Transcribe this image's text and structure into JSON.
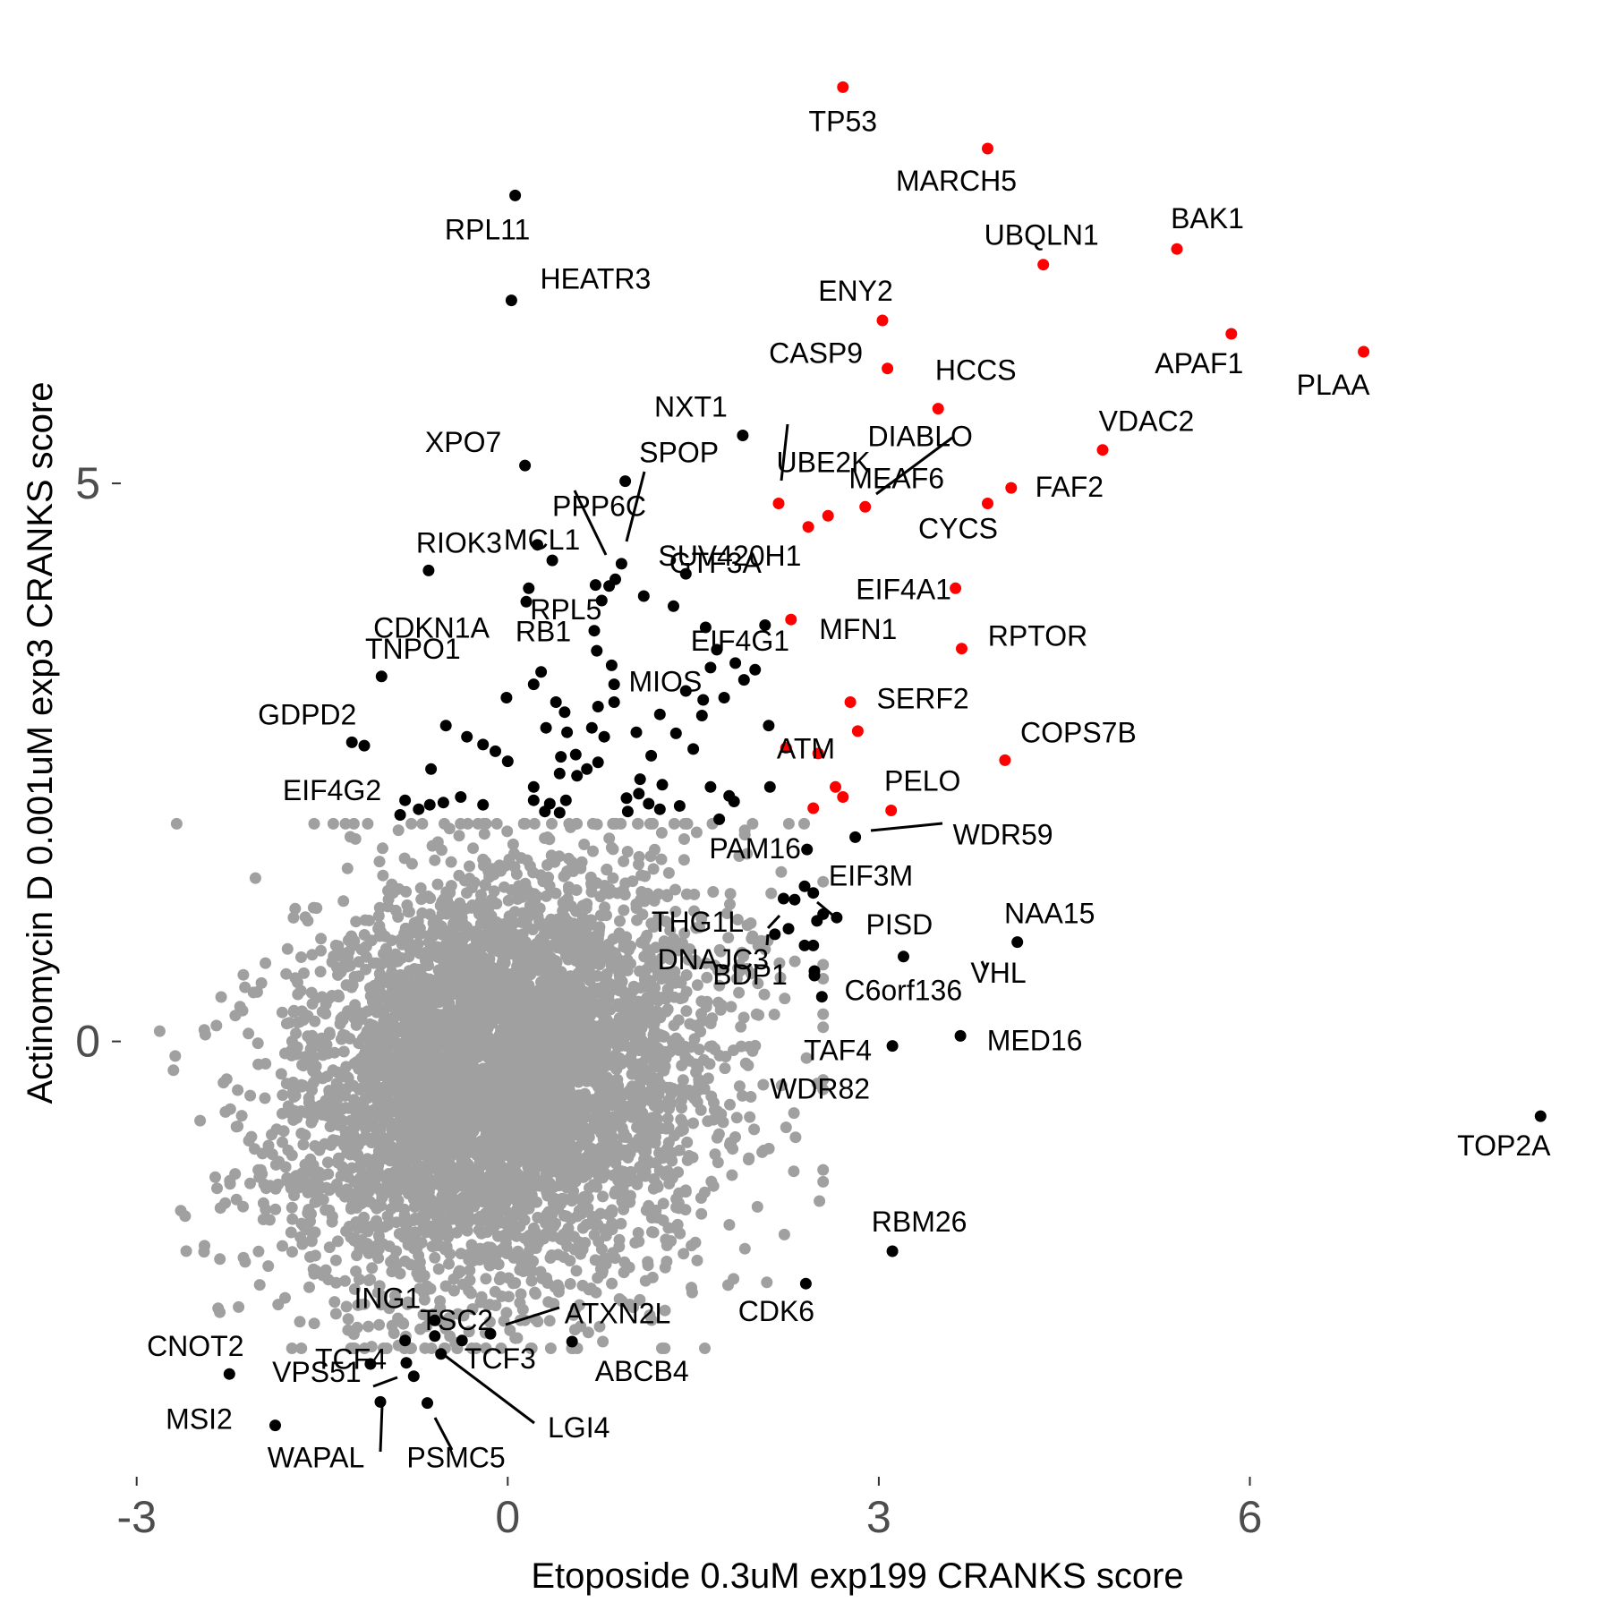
{
  "chart_data": {
    "type": "scatter",
    "title": "",
    "xlabel": "Etoposide 0.3uM exp199 CRANKS score",
    "ylabel": "Actinomycin D 0.001uM exp3 CRANKS score",
    "xlim": [
      -3.05,
      8.7
    ],
    "ylim": [
      -4.0,
      8.8
    ],
    "x_ticks": [
      -3,
      0,
      3,
      6
    ],
    "y_ticks": [
      0,
      5
    ],
    "grid": false,
    "colors": {
      "background_points": "#a0a0a0",
      "highlight_red": "#ff0000",
      "highlight_black": "#000000",
      "axis_text": "#4d4d4d"
    },
    "series": [
      {
        "name": "",
        "color": "#ff0000",
        "points": [
          {
            "label": "TP53",
            "x": 2.71,
            "y": 8.55
          },
          {
            "label": "MARCH5",
            "x": 3.88,
            "y": 8.0
          },
          {
            "label": "BAK1",
            "x": 5.41,
            "y": 7.1
          },
          {
            "label": "UBQLN1",
            "x": 4.33,
            "y": 6.96
          },
          {
            "label": "APAF1",
            "x": 5.85,
            "y": 6.34
          },
          {
            "label": "PLAA",
            "x": 6.92,
            "y": 6.18
          },
          {
            "label": "ENY2",
            "x": 3.03,
            "y": 6.46
          },
          {
            "label": "CASP9",
            "x": 3.07,
            "y": 6.03
          },
          {
            "label": "HCCS",
            "x": 3.48,
            "y": 5.67
          },
          {
            "label": "VDAC2",
            "x": 4.81,
            "y": 5.3
          },
          {
            "label": "FAF2",
            "x": 4.07,
            "y": 4.96
          },
          {
            "label": "CYCS",
            "x": 3.88,
            "y": 4.82
          },
          {
            "label": "MEAF6",
            "x": 2.89,
            "y": 4.79
          },
          {
            "label": "DIABLO",
            "x": 2.59,
            "y": 4.71
          },
          {
            "label": "UBE2K",
            "x": 2.19,
            "y": 4.82
          },
          {
            "label": "",
            "x": 2.43,
            "y": 4.61
          },
          {
            "label": "EIF4A1",
            "x": 3.62,
            "y": 4.06
          },
          {
            "label": "MFN1",
            "x": 2.29,
            "y": 3.78
          },
          {
            "label": "RPTOR",
            "x": 3.67,
            "y": 3.52
          },
          {
            "label": "SERF2",
            "x": 2.77,
            "y": 3.04
          },
          {
            "label": "",
            "x": 2.83,
            "y": 2.78
          },
          {
            "label": "COPS7B",
            "x": 4.02,
            "y": 2.52
          },
          {
            "label": "",
            "x": 2.25,
            "y": 2.63
          },
          {
            "label": "",
            "x": 2.51,
            "y": 2.58
          },
          {
            "label": "ATM",
            "x": 2.65,
            "y": 2.28
          },
          {
            "label": "",
            "x": 2.71,
            "y": 2.19
          },
          {
            "label": "PELO",
            "x": 3.1,
            "y": 2.07
          },
          {
            "label": "",
            "x": 2.47,
            "y": 2.09
          }
        ]
      },
      {
        "name": "",
        "color": "#000000",
        "points": [
          {
            "label": "RPL11",
            "x": 0.06,
            "y": 7.58
          },
          {
            "label": "HEATR3",
            "x": 0.03,
            "y": 6.64
          },
          {
            "label": "NXT1",
            "x": 1.9,
            "y": 5.43
          },
          {
            "label": "XPO7",
            "x": 0.14,
            "y": 5.16
          },
          {
            "label": "SPOP",
            "x": 0.95,
            "y": 5.02
          },
          {
            "label": "SUV420H1",
            "x": 0.92,
            "y": 4.28
          },
          {
            "label": "PPP6C",
            "x": 0.24,
            "y": 4.45
          },
          {
            "label": "RIOK3",
            "x": -0.64,
            "y": 4.22
          },
          {
            "label": "MCL1",
            "x": 0.82,
            "y": 4.08
          },
          {
            "label": "RPL5",
            "x": 0.76,
            "y": 3.95
          },
          {
            "label": "CDKN1A",
            "x": 0.15,
            "y": 3.94
          },
          {
            "label": "RB1",
            "x": 0.7,
            "y": 3.68
          },
          {
            "label": "GTF3A",
            "x": 1.44,
            "y": 4.19
          },
          {
            "label": "MIOS",
            "x": 0.84,
            "y": 3.37
          },
          {
            "label": "EIF4G1",
            "x": 1.64,
            "y": 3.35
          },
          {
            "label": "TNPO1",
            "x": -1.02,
            "y": 3.27
          },
          {
            "label": "GDPD2",
            "x": -1.26,
            "y": 2.68
          },
          {
            "label": "EIF4G2",
            "x": -1.16,
            "y": 2.65
          },
          {
            "label": "WDR59",
            "x": 2.81,
            "y": 1.83
          },
          {
            "label": "PAM16",
            "x": 2.42,
            "y": 1.72
          },
          {
            "label": "EIF3M",
            "x": 2.4,
            "y": 1.39
          },
          {
            "label": "THG1L",
            "x": 2.23,
            "y": 1.28
          },
          {
            "label": "PISD",
            "x": 2.66,
            "y": 1.11
          },
          {
            "label": "DNAJC3",
            "x": 2.5,
            "y": 1.08
          },
          {
            "label": "NAA15",
            "x": 4.12,
            "y": 0.89
          },
          {
            "label": "VHL",
            "x": 3.2,
            "y": 0.76
          },
          {
            "label": "BDP1",
            "x": 2.48,
            "y": 0.63
          },
          {
            "label": "C6orf136",
            "x": 2.54,
            "y": 0.4
          },
          {
            "label": "MED16",
            "x": 3.66,
            "y": 0.05
          },
          {
            "label": "TAF4",
            "x": 3.11,
            "y": -0.04
          },
          {
            "label": "TOP2A",
            "x": 8.35,
            "y": -0.67
          },
          {
            "label": "RBM26",
            "x": 3.11,
            "y": -1.88
          },
          {
            "label": "CDK6",
            "x": 2.41,
            "y": -2.17
          },
          {
            "label": "ATXN2L",
            "x": -0.14,
            "y": -2.62
          },
          {
            "label": "ABCB4",
            "x": 0.52,
            "y": -2.69
          },
          {
            "label": "ING1",
            "x": -0.59,
            "y": -2.5
          },
          {
            "label": "TSC2",
            "x": -0.37,
            "y": -2.68
          },
          {
            "label": "TCF4",
            "x": -0.82,
            "y": -2.88
          },
          {
            "label": "TCF3",
            "x": -0.59,
            "y": -2.64
          },
          {
            "label": "LGI4",
            "x": -0.54,
            "y": -2.8
          },
          {
            "label": "CNOT2",
            "x": -2.25,
            "y": -2.98
          },
          {
            "label": "VPS51",
            "x": -1.11,
            "y": -2.89
          },
          {
            "label": "WAPAL",
            "x": -1.03,
            "y": -3.23
          },
          {
            "label": "PSMC5",
            "x": -0.65,
            "y": -3.24
          },
          {
            "label": "MSI2",
            "x": -1.88,
            "y": -3.44
          },
          {
            "label": "",
            "x": -0.83,
            "y": -2.68
          },
          {
            "label": "",
            "x": -0.76,
            "y": -3.0
          },
          {
            "label": "",
            "x": 0.17,
            "y": 4.06
          },
          {
            "label": "",
            "x": 0.36,
            "y": 4.31
          },
          {
            "label": "",
            "x": 0.71,
            "y": 4.09
          },
          {
            "label": "",
            "x": 0.87,
            "y": 4.14
          },
          {
            "label": "",
            "x": 1.1,
            "y": 3.99
          },
          {
            "label": "",
            "x": 1.34,
            "y": 3.9
          },
          {
            "label": "",
            "x": 1.6,
            "y": 3.71
          },
          {
            "label": "",
            "x": 2.08,
            "y": 3.73
          },
          {
            "label": "",
            "x": 1.69,
            "y": 3.51
          },
          {
            "label": "",
            "x": 1.84,
            "y": 3.39
          },
          {
            "label": "",
            "x": 2.0,
            "y": 3.33
          },
          {
            "label": "",
            "x": 1.91,
            "y": 3.24
          },
          {
            "label": "",
            "x": 0.72,
            "y": 3.5
          },
          {
            "label": "",
            "x": 0.27,
            "y": 3.31
          },
          {
            "label": "",
            "x": 0.21,
            "y": 3.2
          },
          {
            "label": "",
            "x": 0.86,
            "y": 3.2
          },
          {
            "label": "",
            "x": 1.44,
            "y": 3.14
          },
          {
            "label": "",
            "x": 1.58,
            "y": 3.06
          },
          {
            "label": "",
            "x": -0.01,
            "y": 3.08
          },
          {
            "label": "",
            "x": 0.39,
            "y": 3.04
          },
          {
            "label": "",
            "x": 0.73,
            "y": 3.0
          },
          {
            "label": "",
            "x": 0.86,
            "y": 3.04
          },
          {
            "label": "",
            "x": 0.46,
            "y": 2.95
          },
          {
            "label": "",
            "x": 1.23,
            "y": 2.93
          },
          {
            "label": "",
            "x": 1.57,
            "y": 2.92
          },
          {
            "label": "",
            "x": 1.75,
            "y": 3.08
          },
          {
            "label": "",
            "x": 0.68,
            "y": 2.81
          },
          {
            "label": "",
            "x": 0.31,
            "y": 2.81
          },
          {
            "label": "",
            "x": 0.48,
            "y": 2.77
          },
          {
            "label": "",
            "x": 0.78,
            "y": 2.73
          },
          {
            "label": "",
            "x": 1.04,
            "y": 2.77
          },
          {
            "label": "",
            "x": 1.36,
            "y": 2.76
          },
          {
            "label": "",
            "x": 2.11,
            "y": 2.83
          },
          {
            "label": "",
            "x": -0.5,
            "y": 2.83
          },
          {
            "label": "",
            "x": -0.33,
            "y": 2.73
          },
          {
            "label": "",
            "x": -0.2,
            "y": 2.66
          },
          {
            "label": "",
            "x": -0.1,
            "y": 2.6
          },
          {
            "label": "",
            "x": 0.0,
            "y": 2.51
          },
          {
            "label": "",
            "x": 0.43,
            "y": 2.55
          },
          {
            "label": "",
            "x": 0.55,
            "y": 2.57
          },
          {
            "label": "",
            "x": 0.73,
            "y": 2.5
          },
          {
            "label": "",
            "x": 1.16,
            "y": 2.56
          },
          {
            "label": "",
            "x": 1.5,
            "y": 2.62
          },
          {
            "label": "",
            "x": -0.62,
            "y": 2.44
          },
          {
            "label": "",
            "x": 0.42,
            "y": 2.4
          },
          {
            "label": "",
            "x": 0.56,
            "y": 2.38
          },
          {
            "label": "",
            "x": 0.64,
            "y": 2.44
          },
          {
            "label": "",
            "x": 1.07,
            "y": 2.35
          },
          {
            "label": "",
            "x": 1.25,
            "y": 2.3
          },
          {
            "label": "",
            "x": 1.64,
            "y": 2.28
          },
          {
            "label": "",
            "x": 0.21,
            "y": 2.28
          },
          {
            "label": "",
            "x": 1.06,
            "y": 2.22
          },
          {
            "label": "",
            "x": 1.79,
            "y": 2.2
          },
          {
            "label": "",
            "x": 1.83,
            "y": 2.15
          },
          {
            "label": "",
            "x": 2.12,
            "y": 2.28
          },
          {
            "label": "",
            "x": -0.83,
            "y": 2.16
          },
          {
            "label": "",
            "x": -0.63,
            "y": 2.12
          },
          {
            "label": "",
            "x": -0.52,
            "y": 2.14
          },
          {
            "label": "",
            "x": -0.38,
            "y": 2.19
          },
          {
            "label": "",
            "x": -0.2,
            "y": 2.12
          },
          {
            "label": "",
            "x": 0.21,
            "y": 2.16
          },
          {
            "label": "",
            "x": 0.34,
            "y": 2.13
          },
          {
            "label": "",
            "x": 0.47,
            "y": 2.16
          },
          {
            "label": "",
            "x": 0.96,
            "y": 2.18
          },
          {
            "label": "",
            "x": 1.14,
            "y": 2.13
          },
          {
            "label": "",
            "x": 1.39,
            "y": 2.11
          },
          {
            "label": "",
            "x": 0.97,
            "y": 2.06
          },
          {
            "label": "",
            "x": -0.87,
            "y": 2.03
          },
          {
            "label": "",
            "x": -0.72,
            "y": 2.08
          },
          {
            "label": "",
            "x": 0.3,
            "y": 2.06
          },
          {
            "label": "",
            "x": 0.42,
            "y": 2.05
          },
          {
            "label": "",
            "x": 1.23,
            "y": 2.08
          },
          {
            "label": "",
            "x": 1.71,
            "y": 1.99
          },
          {
            "label": "",
            "x": 2.32,
            "y": 1.27
          },
          {
            "label": "",
            "x": 2.47,
            "y": 1.33
          },
          {
            "label": "",
            "x": 2.55,
            "y": 1.14
          },
          {
            "label": "",
            "x": 2.27,
            "y": 1.01
          },
          {
            "label": "",
            "x": 2.16,
            "y": 0.96
          },
          {
            "label": "",
            "x": 2.4,
            "y": 0.86
          },
          {
            "label": "",
            "x": 2.47,
            "y": 0.86
          },
          {
            "label": "",
            "x": 2.48,
            "y": 0.59
          }
        ]
      },
      {
        "name": "",
        "color": "#a0a0a0",
        "generated": true,
        "count": 5000,
        "center": [
          -0.05,
          -0.35
        ],
        "spread": [
          0.85,
          0.95
        ],
        "random_seed": 11
      }
    ]
  }
}
